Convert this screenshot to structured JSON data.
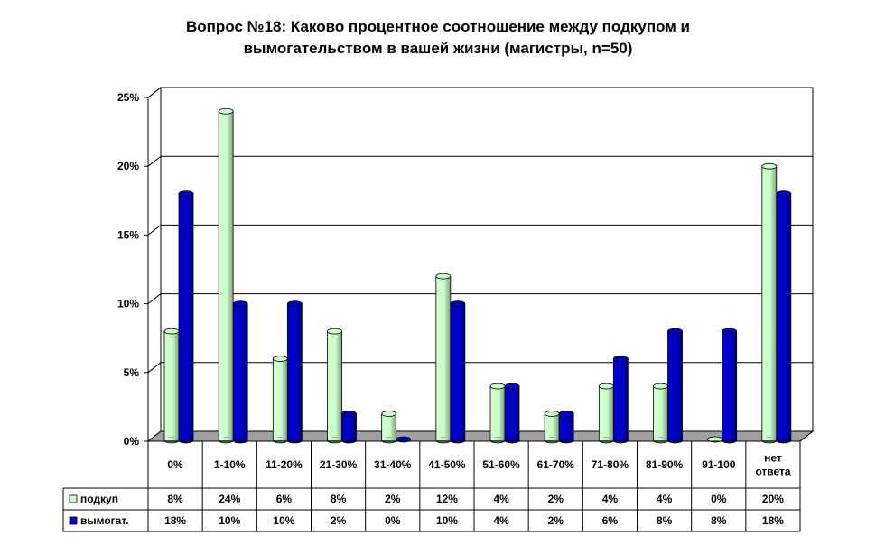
{
  "chart_data": {
    "type": "bar",
    "title_lines": [
      "Вопрос №18: Каково процентное соотношение между подкупом и",
      "вымогательством в вашей жизни (магистры, n=50)"
    ],
    "categories": [
      "0%",
      "1-10%",
      "11-20%",
      "21-30%",
      "31-40%",
      "41-50%",
      "51-60%",
      "61-70%",
      "71-80%",
      "81-90%",
      "91-100",
      "нет ответа"
    ],
    "category_lines": [
      [
        "0%"
      ],
      [
        "1-10%"
      ],
      [
        "11-20%"
      ],
      [
        "21-30%"
      ],
      [
        "31-40%"
      ],
      [
        "41-50%"
      ],
      [
        "51-60%"
      ],
      [
        "61-70%"
      ],
      [
        "71-80%"
      ],
      [
        "81-90%"
      ],
      [
        "91-100"
      ],
      [
        "нет",
        "ответа"
      ]
    ],
    "series": [
      {
        "name": "подкуп",
        "color": "#ccffcc",
        "values": [
          8,
          24,
          6,
          8,
          2,
          12,
          4,
          2,
          4,
          4,
          0,
          20
        ],
        "labels": [
          "8%",
          "24%",
          "6%",
          "8%",
          "2%",
          "12%",
          "4%",
          "2%",
          "4%",
          "4%",
          "0%",
          "20%"
        ]
      },
      {
        "name": "вымогат.",
        "color": "#0000cc",
        "values": [
          18,
          10,
          10,
          2,
          0,
          10,
          4,
          2,
          6,
          8,
          8,
          18
        ],
        "labels": [
          "18%",
          "10%",
          "10%",
          "2%",
          "0%",
          "10%",
          "4%",
          "2%",
          "6%",
          "8%",
          "8%",
          "18%"
        ]
      }
    ],
    "y_ticks": [
      "0%",
      "5%",
      "10%",
      "15%",
      "20%",
      "25%"
    ],
    "ylim": [
      0,
      25
    ],
    "grid": true,
    "legend": "data-table"
  }
}
